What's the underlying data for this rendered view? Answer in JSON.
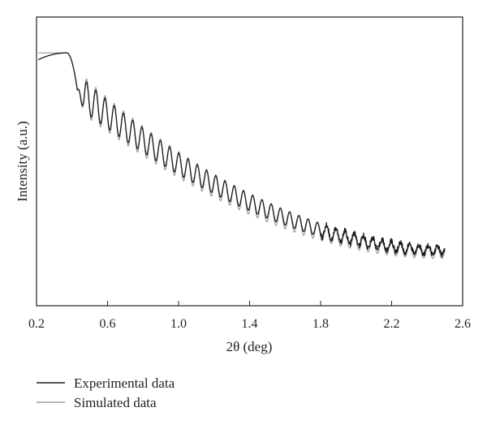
{
  "chart_data": {
    "type": "line",
    "title": "",
    "xlabel": "2θ (deg)",
    "ylabel": "Intensity (a.u.)",
    "xlim": [
      0.2,
      2.6
    ],
    "ylim": [
      0,
      1
    ],
    "x_ticks": [
      "0.2",
      "0.6",
      "1.0",
      "1.4",
      "1.8",
      "2.2",
      "2.6"
    ],
    "y_ticks": [],
    "grid": false,
    "legend_position": "bottom-left",
    "series": [
      {
        "name": "Experimental data",
        "color": "#1a1a1a",
        "curve": {
          "x_start": 0.21,
          "x_end": 2.5,
          "plateau_end": 0.37,
          "critical_angle": 0.43,
          "intensity_at_plateau": 0.985,
          "intensity_at_end": 0.115,
          "fringe_period": 0.052,
          "fringe_amplitude_start": 0.08,
          "fringe_amplitude_end": 0.018,
          "noise_from": 1.8,
          "noise_amplitude": 0.012
        }
      },
      {
        "name": "Simulated data",
        "color": "#9a9a9a",
        "curve": {
          "x_start": 0.21,
          "x_end": 2.5,
          "plateau_end": 0.37,
          "critical_angle": 0.43,
          "intensity_at_plateau": 0.985,
          "intensity_at_end": 0.105,
          "fringe_period": 0.052,
          "fringe_amplitude_start": 0.095,
          "fringe_amplitude_end": 0.025,
          "noise_from": 3.0,
          "noise_amplitude": 0
        }
      }
    ]
  }
}
